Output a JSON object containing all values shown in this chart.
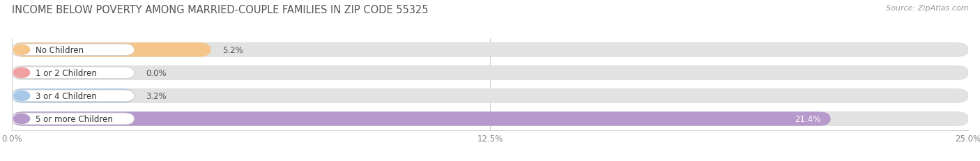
{
  "title": "INCOME BELOW POVERTY AMONG MARRIED-COUPLE FAMILIES IN ZIP CODE 55325",
  "source": "Source: ZipAtlas.com",
  "categories": [
    "No Children",
    "1 or 2 Children",
    "3 or 4 Children",
    "5 or more Children"
  ],
  "values": [
    5.2,
    0.0,
    3.2,
    21.4
  ],
  "bar_colors": [
    "#f5c58a",
    "#f0a0a0",
    "#a8c8e8",
    "#b899cc"
  ],
  "xlim": [
    0,
    25.0
  ],
  "xticks": [
    0.0,
    12.5,
    25.0
  ],
  "xtick_labels": [
    "0.0%",
    "12.5%",
    "25.0%"
  ],
  "background_color": "#f5f5f5",
  "bar_bg_color": "#e2e2e2",
  "title_fontsize": 10.5,
  "tick_fontsize": 8.5,
  "value_fontsize": 8.5,
  "label_fontsize": 8.5
}
